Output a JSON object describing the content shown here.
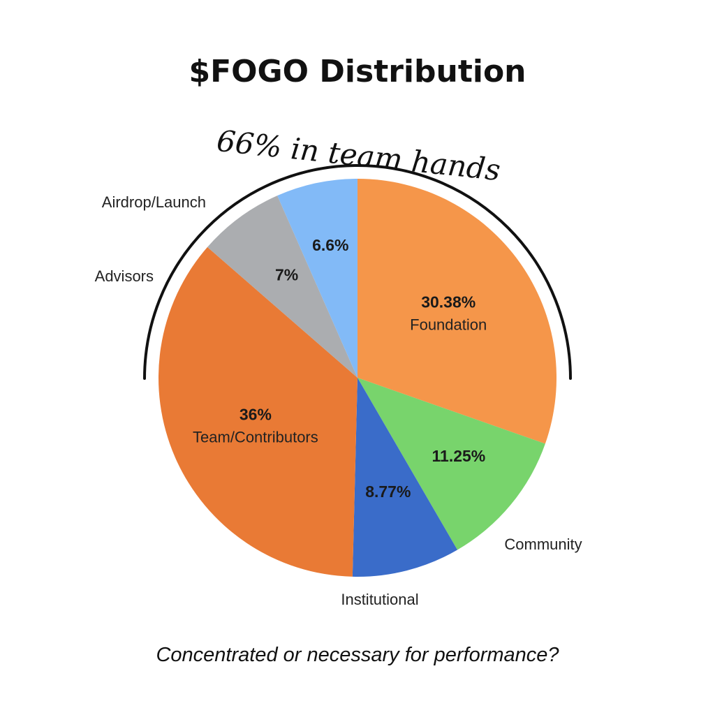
{
  "chart_data": {
    "type": "pie",
    "title": "$FOGO Distribution",
    "annotation": "66% in team hands",
    "caption": "Concentrated or necessary for performance?",
    "slices": [
      {
        "label": "Foundation",
        "value": 30.38,
        "value_label": "30.38%",
        "color": "#F5964A"
      },
      {
        "label": "Community",
        "value": 11.25,
        "value_label": "11.25%",
        "color": "#78D46C"
      },
      {
        "label": "Institutional",
        "value": 8.77,
        "value_label": "8.77%",
        "color": "#3A6CC9"
      },
      {
        "label": "Team/Contributors",
        "value": 36,
        "value_label": "36%",
        "color": "#E97A35"
      },
      {
        "label": "Advisors",
        "value": 7,
        "value_label": "7%",
        "color": "#ABADB0"
      },
      {
        "label": "Airdrop/Launch",
        "value": 6.6,
        "value_label": "6.6%",
        "color": "#82BAF7"
      }
    ]
  }
}
